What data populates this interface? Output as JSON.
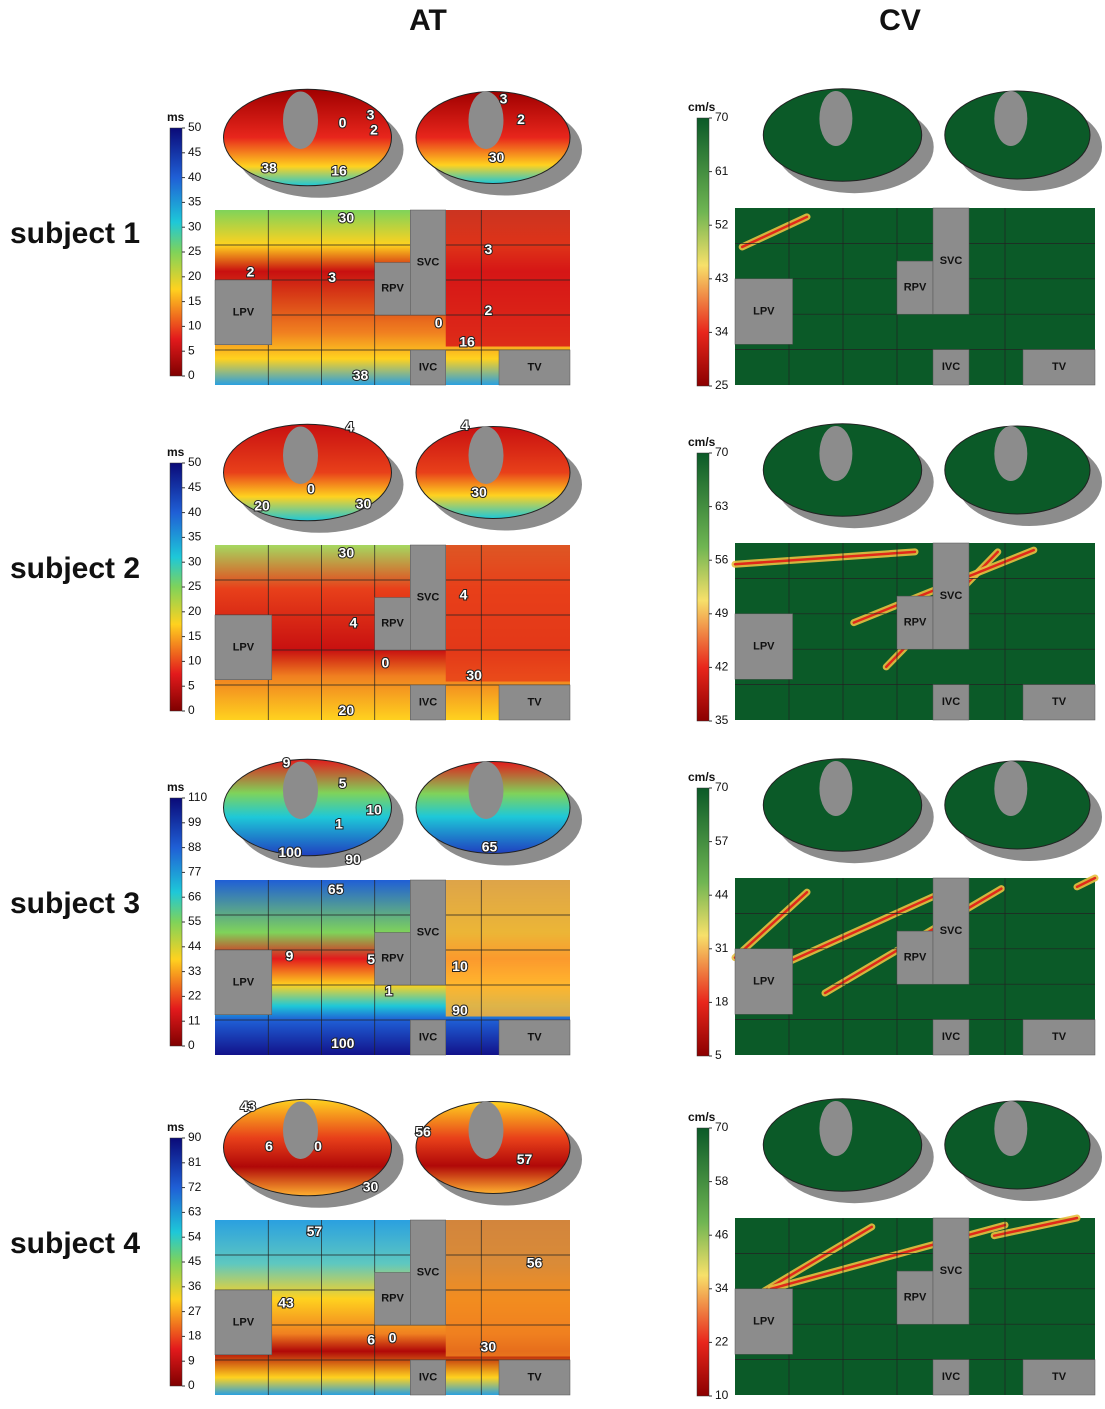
{
  "column_titles": [
    "AT",
    "CV"
  ],
  "subjects": [
    {
      "label": "subject 1",
      "at": {
        "unit": "ms",
        "ticks": [
          0,
          5,
          10,
          15,
          20,
          25,
          30,
          35,
          40,
          45,
          50
        ],
        "regions": [
          "LPV",
          "RPV",
          "SVC",
          "IVC",
          "TV"
        ],
        "blob_labels": [
          "3",
          "0",
          "2",
          "38",
          "16",
          "3",
          "2",
          "30"
        ],
        "map_labels": [
          "30",
          "3",
          "2",
          "3",
          "0",
          "2",
          "16",
          "38"
        ]
      },
      "cv": {
        "unit": "cm/s",
        "ticks": [
          25,
          34,
          43,
          52,
          61,
          70
        ],
        "regions": [
          "LPV",
          "RPV",
          "SVC",
          "IVC",
          "TV"
        ]
      }
    },
    {
      "label": "subject 2",
      "at": {
        "unit": "ms",
        "ticks": [
          0,
          5,
          10,
          15,
          20,
          25,
          30,
          35,
          40,
          45,
          50
        ],
        "regions": [
          "LPV",
          "RPV",
          "SVC",
          "IVC",
          "TV"
        ],
        "blob_labels": [
          "4",
          "0",
          "20",
          "30",
          "4",
          "30"
        ],
        "map_labels": [
          "30",
          "4",
          "4",
          "0",
          "30",
          "20"
        ]
      },
      "cv": {
        "unit": "cm/s",
        "ticks": [
          35,
          42,
          49,
          56,
          63,
          70
        ],
        "regions": [
          "LPV",
          "RPV",
          "SVC",
          "IVC",
          "TV"
        ]
      }
    },
    {
      "label": "subject 3",
      "at": {
        "unit": "ms",
        "ticks": [
          0,
          11,
          22,
          33,
          44,
          55,
          66,
          77,
          88,
          99,
          110
        ],
        "regions": [
          "LPV",
          "RPV",
          "SVC",
          "IVC",
          "TV"
        ],
        "blob_labels": [
          "9",
          "5",
          "1",
          "10",
          "100",
          "90",
          "65"
        ],
        "map_labels": [
          "65",
          "9",
          "5",
          "10",
          "1",
          "90",
          "100"
        ]
      },
      "cv": {
        "unit": "cm/s",
        "ticks": [
          5,
          18,
          31,
          44,
          57,
          70
        ],
        "regions": [
          "LPV",
          "RPV",
          "SVC",
          "IVC",
          "TV"
        ]
      }
    },
    {
      "label": "subject 4",
      "at": {
        "unit": "ms",
        "ticks": [
          0,
          9,
          18,
          27,
          36,
          45,
          54,
          63,
          72,
          81,
          90
        ],
        "regions": [
          "LPV",
          "RPV",
          "SVC",
          "IVC",
          "TV"
        ],
        "blob_labels": [
          "43",
          "6",
          "0",
          "30",
          "56",
          "57"
        ],
        "map_labels": [
          "57",
          "43",
          "6",
          "0",
          "30",
          "56"
        ]
      },
      "cv": {
        "unit": "cm/s",
        "ticks": [
          10,
          22,
          34,
          46,
          58,
          70
        ],
        "regions": [
          "LPV",
          "RPV",
          "SVC",
          "IVC",
          "TV"
        ]
      }
    }
  ]
}
